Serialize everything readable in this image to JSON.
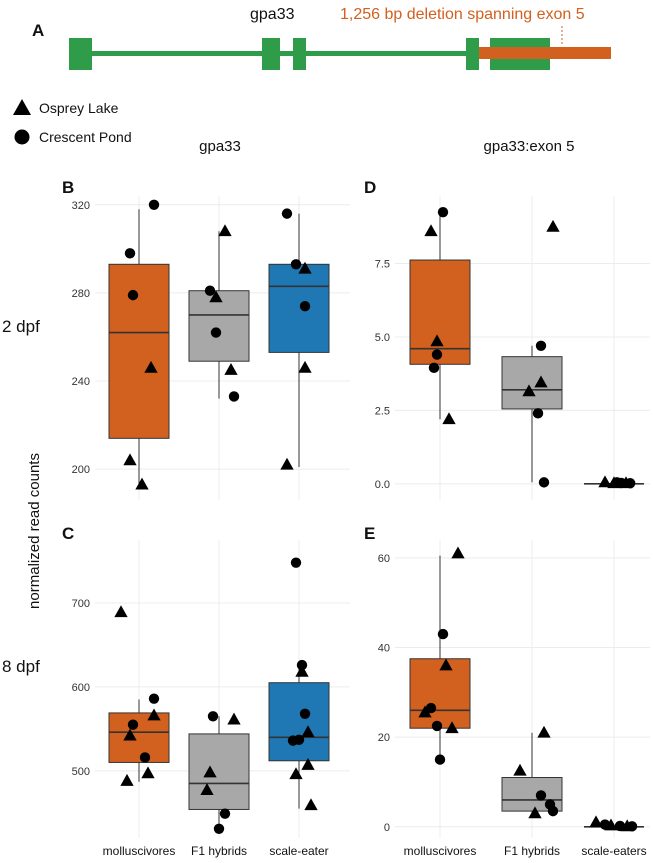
{
  "colors": {
    "mollusc": "#d2601f",
    "hybrid": "#a8a8a8",
    "scale": "#1f78b4",
    "gene": "#2e9c48",
    "deletion": "#d2601f",
    "grid": "#ececec",
    "text": "#111111",
    "axis_text": "#333333"
  },
  "labels": {
    "panel_a": "A",
    "panel_b": "B",
    "panel_c": "C",
    "panel_d": "D",
    "panel_e": "E",
    "gene_name": "gpa33",
    "deletion": "1,256 bp deletion spanning exon 5",
    "col_left": "gpa33",
    "col_right": "gpa33:exon 5",
    "row_top": "2 dpf",
    "row_bottom": "8 dpf",
    "y_axis": "normalized read counts"
  },
  "legend": [
    {
      "shape": "triangle",
      "label": "Osprey Lake"
    },
    {
      "shape": "circle",
      "label": "Crescent Pond"
    }
  ],
  "chart_data": [
    {
      "panel": "B",
      "type": "box",
      "categories": [
        "",
        "",
        ""
      ],
      "y_ticks": [
        "320",
        "280",
        "240",
        "200"
      ],
      "y_tick_values": [
        320,
        280,
        240,
        200
      ],
      "ylim": [
        186,
        324
      ],
      "boxes": [
        {
          "q1": 214,
          "median": 262,
          "q3": 293,
          "low": 192,
          "high": 318
        },
        {
          "q1": 249,
          "median": 270,
          "q3": 281,
          "low": 232,
          "high": 308
        },
        {
          "q1": 253,
          "median": 283,
          "q3": 293,
          "low": 201,
          "high": 316
        }
      ],
      "points": [
        [
          {
            "v": 320,
            "dx": 0.25,
            "s": "c"
          },
          {
            "v": 298,
            "dx": -0.15,
            "s": "c"
          },
          {
            "v": 279,
            "dx": -0.1,
            "s": "c"
          },
          {
            "v": 246,
            "dx": 0.2,
            "s": "t"
          },
          {
            "v": 204,
            "dx": -0.15,
            "s": "t"
          },
          {
            "v": 193,
            "dx": 0.05,
            "s": "t"
          }
        ],
        [
          {
            "v": 308,
            "dx": 0.1,
            "s": "t"
          },
          {
            "v": 281,
            "dx": -0.15,
            "s": "c"
          },
          {
            "v": 278,
            "dx": -0.05,
            "s": "t"
          },
          {
            "v": 262,
            "dx": -0.05,
            "s": "c"
          },
          {
            "v": 245,
            "dx": 0.2,
            "s": "t"
          },
          {
            "v": 233,
            "dx": 0.25,
            "s": "c"
          }
        ],
        [
          {
            "v": 316,
            "dx": -0.2,
            "s": "c"
          },
          {
            "v": 293,
            "dx": -0.05,
            "s": "c"
          },
          {
            "v": 291,
            "dx": 0.1,
            "s": "t"
          },
          {
            "v": 274,
            "dx": 0.1,
            "s": "c"
          },
          {
            "v": 246,
            "dx": 0.1,
            "s": "t"
          },
          {
            "v": 202,
            "dx": -0.2,
            "s": "t"
          }
        ]
      ]
    },
    {
      "panel": "D",
      "type": "box",
      "categories": [
        "",
        "",
        ""
      ],
      "y_ticks": [
        "7.5",
        "5.0",
        "2.5",
        "0.0"
      ],
      "y_tick_values": [
        7.5,
        5.0,
        2.5,
        0.0
      ],
      "ylim": [
        -0.55,
        9.8
      ],
      "boxes": [
        {
          "q1": 4.07,
          "median": 4.6,
          "q3": 7.62,
          "low": 2.2,
          "high": 9.25
        },
        {
          "q1": 2.55,
          "median": 3.2,
          "q3": 4.33,
          "low": 0.05,
          "high": 4.7
        },
        {
          "q1": 0.0,
          "median": 0.0,
          "q3": 0.0,
          "low": 0.0,
          "high": 0.0
        }
      ],
      "points": [
        [
          {
            "v": 9.25,
            "dx": 0.05,
            "s": "c"
          },
          {
            "v": 8.6,
            "dx": -0.15,
            "s": "t"
          },
          {
            "v": 4.85,
            "dx": -0.05,
            "s": "t"
          },
          {
            "v": 4.4,
            "dx": -0.05,
            "s": "c"
          },
          {
            "v": 3.95,
            "dx": -0.1,
            "s": "c"
          },
          {
            "v": 2.2,
            "dx": 0.15,
            "s": "t"
          }
        ],
        [
          {
            "v": 8.75,
            "dx": 0.35,
            "s": "t"
          },
          {
            "v": 4.7,
            "dx": 0.15,
            "s": "c"
          },
          {
            "v": 3.45,
            "dx": 0.15,
            "s": "t"
          },
          {
            "v": 3.15,
            "dx": -0.05,
            "s": "t"
          },
          {
            "v": 2.4,
            "dx": 0.1,
            "s": "c"
          },
          {
            "v": 0.05,
            "dx": 0.2,
            "s": "c"
          }
        ],
        [
          {
            "v": 0.05,
            "dx": -0.15,
            "s": "t"
          },
          {
            "v": 0.02,
            "dx": 0.0,
            "s": "t"
          },
          {
            "v": 0.05,
            "dx": 0.05,
            "s": "c"
          },
          {
            "v": 0.03,
            "dx": 0.12,
            "s": "c"
          },
          {
            "v": 0.02,
            "dx": 0.2,
            "s": "t"
          },
          {
            "v": 0.02,
            "dx": 0.27,
            "s": "c"
          }
        ]
      ]
    },
    {
      "panel": "C",
      "type": "box",
      "categories": [
        "molluscivores",
        "F1 hybrids",
        "scale-eater"
      ],
      "y_ticks": [
        "700",
        "600",
        "500"
      ],
      "y_tick_values": [
        700,
        600,
        500
      ],
      "ylim": [
        420,
        775
      ],
      "boxes": [
        {
          "q1": 510,
          "median": 546,
          "q3": 569,
          "low": 487,
          "high": 585
        },
        {
          "q1": 454,
          "median": 485,
          "q3": 544,
          "low": 429,
          "high": 565
        },
        {
          "q1": 512,
          "median": 540,
          "q3": 605,
          "low": 455,
          "high": 625
        }
      ],
      "points": [
        [
          {
            "v": 689,
            "dx": -0.3,
            "s": "t"
          },
          {
            "v": 586,
            "dx": 0.25,
            "s": "c"
          },
          {
            "v": 566,
            "dx": 0.25,
            "s": "t"
          },
          {
            "v": 555,
            "dx": -0.1,
            "s": "c"
          },
          {
            "v": 542,
            "dx": -0.15,
            "s": "t"
          },
          {
            "v": 516,
            "dx": 0.1,
            "s": "c"
          },
          {
            "v": 497,
            "dx": 0.15,
            "s": "t"
          },
          {
            "v": 488,
            "dx": -0.2,
            "s": "t"
          }
        ],
        [
          {
            "v": 565,
            "dx": -0.1,
            "s": "c"
          },
          {
            "v": 561,
            "dx": 0.25,
            "s": "t"
          },
          {
            "v": 498,
            "dx": -0.15,
            "s": "t"
          },
          {
            "v": 477,
            "dx": -0.2,
            "s": "t"
          },
          {
            "v": 449,
            "dx": 0.1,
            "s": "c"
          },
          {
            "v": 431,
            "dx": 0.0,
            "s": "c"
          }
        ],
        [
          {
            "v": 748,
            "dx": -0.05,
            "s": "c"
          },
          {
            "v": 626,
            "dx": 0.05,
            "s": "c"
          },
          {
            "v": 618,
            "dx": 0.05,
            "s": "t"
          },
          {
            "v": 568,
            "dx": 0.1,
            "s": "c"
          },
          {
            "v": 546,
            "dx": 0.15,
            "s": "t"
          },
          {
            "v": 537,
            "dx": 0.0,
            "s": "c"
          },
          {
            "v": 536,
            "dx": -0.1,
            "s": "c"
          },
          {
            "v": 507,
            "dx": 0.15,
            "s": "t"
          },
          {
            "v": 496,
            "dx": -0.05,
            "s": "t"
          },
          {
            "v": 459,
            "dx": 0.2,
            "s": "t"
          }
        ]
      ]
    },
    {
      "panel": "E",
      "type": "box",
      "categories": [
        "molluscivores",
        "F1 hybrids",
        "scale-eaters"
      ],
      "y_ticks": [
        "60",
        "40",
        "20",
        "0"
      ],
      "y_tick_values": [
        60,
        40,
        20,
        0
      ],
      "ylim": [
        -2.5,
        64
      ],
      "boxes": [
        {
          "q1": 22,
          "median": 26,
          "q3": 37.5,
          "low": 15,
          "high": 60.5
        },
        {
          "q1": 3.5,
          "median": 6,
          "q3": 11,
          "low": 2.5,
          "high": 21
        },
        {
          "q1": 0.0,
          "median": 0.0,
          "q3": 0.0,
          "low": 0.0,
          "high": 0.0
        }
      ],
      "points": [
        [
          {
            "v": 61,
            "dx": 0.3,
            "s": "t"
          },
          {
            "v": 43,
            "dx": 0.05,
            "s": "c"
          },
          {
            "v": 36,
            "dx": 0.1,
            "s": "t"
          },
          {
            "v": 26.5,
            "dx": -0.15,
            "s": "c"
          },
          {
            "v": 25.5,
            "dx": -0.25,
            "s": "t"
          },
          {
            "v": 22.5,
            "dx": -0.05,
            "s": "c"
          },
          {
            "v": 22,
            "dx": 0.2,
            "s": "t"
          },
          {
            "v": 15,
            "dx": 0.0,
            "s": "c"
          }
        ],
        [
          {
            "v": 21,
            "dx": 0.2,
            "s": "t"
          },
          {
            "v": 12.5,
            "dx": -0.2,
            "s": "t"
          },
          {
            "v": 7,
            "dx": 0.15,
            "s": "c"
          },
          {
            "v": 5,
            "dx": 0.3,
            "s": "c"
          },
          {
            "v": 3.5,
            "dx": 0.35,
            "s": "c"
          },
          {
            "v": 3,
            "dx": 0.05,
            "s": "t"
          }
        ],
        [
          {
            "v": 1,
            "dx": -0.3,
            "s": "t"
          },
          {
            "v": 0.5,
            "dx": -0.15,
            "s": "c"
          },
          {
            "v": 0.3,
            "dx": -0.05,
            "s": "t"
          },
          {
            "v": 0.2,
            "dx": 0.1,
            "s": "c"
          },
          {
            "v": 0.1,
            "dx": 0.22,
            "s": "t"
          },
          {
            "v": 0.1,
            "dx": 0.3,
            "s": "c"
          }
        ]
      ]
    }
  ]
}
